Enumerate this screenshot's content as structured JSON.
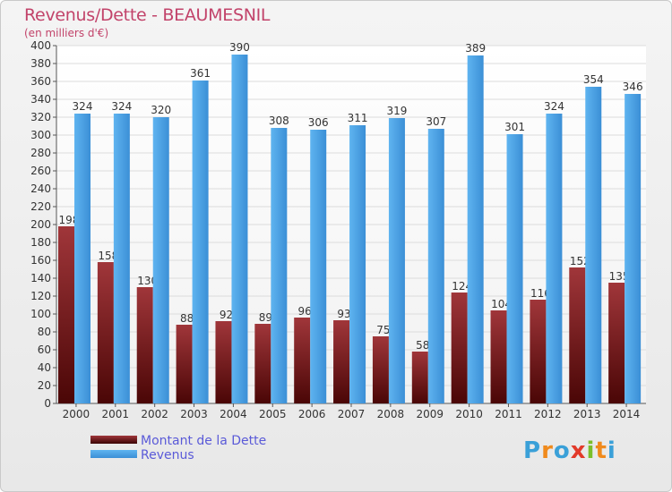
{
  "chart_data": {
    "type": "bar",
    "title": "Revenus/Dette - BEAUMESNIL",
    "subtitle": "(en milliers d'€)",
    "categories": [
      "2000",
      "2001",
      "2002",
      "2003",
      "2004",
      "2005",
      "2006",
      "2007",
      "2008",
      "2009",
      "2010",
      "2011",
      "2012",
      "2013",
      "2014"
    ],
    "series": [
      {
        "name": "Montant de la Dette",
        "values": [
          198,
          158,
          130,
          88,
          92,
          89,
          96,
          93,
          75,
          58,
          124,
          104,
          116,
          152,
          135
        ],
        "color": "#7a1818"
      },
      {
        "name": "Revenus",
        "values": [
          324,
          324,
          320,
          361,
          390,
          308,
          306,
          311,
          319,
          307,
          389,
          301,
          324,
          354,
          346
        ],
        "color": "#4aa3e8"
      }
    ],
    "ylim": [
      0,
      400
    ],
    "ytick_step": 20,
    "grid": true,
    "legend_position": "bottom-left"
  },
  "logo": {
    "text": "Proxiti",
    "letters": [
      "P",
      "r",
      "o",
      "x",
      "i",
      "t",
      "i"
    ],
    "colors": [
      "#3aa0d8",
      "#f08a1c",
      "#3aa0d8",
      "#e23a2a",
      "#7bbf2a",
      "#f08a1c",
      "#3aa0d8"
    ]
  }
}
